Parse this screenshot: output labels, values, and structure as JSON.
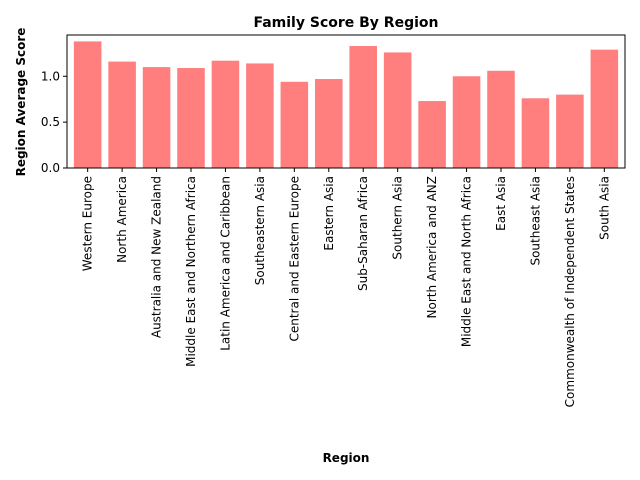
{
  "chart_data": {
    "type": "bar",
    "title": "Family Score By Region",
    "xlabel": "Region",
    "ylabel": "Region Average Score",
    "categories": [
      "Western Europe",
      "North America",
      "Australia and New Zealand",
      "Middle East and Northern Africa",
      "Latin America and Caribbean",
      "Southeastern Asia",
      "Central and Eastern Europe",
      "Eastern Asia",
      "Sub-Saharan Africa",
      "Southern Asia",
      "North America and ANZ",
      "Middle East and North Africa",
      "East Asia",
      "Southeast Asia",
      "Commonwealth of Independent States",
      "South Asia"
    ],
    "values": [
      1.38,
      1.16,
      1.1,
      1.09,
      1.17,
      1.14,
      0.94,
      0.97,
      1.33,
      1.26,
      0.73,
      1.0,
      1.06,
      0.76,
      0.8,
      1.29
    ],
    "ylim": [
      0,
      1.45
    ],
    "yticks": [
      "0.0",
      "0.5",
      "1.0"
    ],
    "bar_color": "#ff7f7f",
    "grid": false,
    "legend": "none"
  }
}
